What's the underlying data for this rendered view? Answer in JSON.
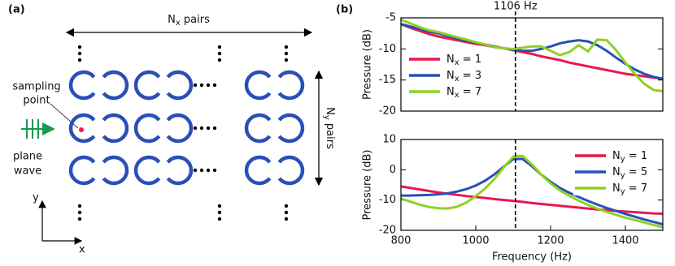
{
  "diagram": {
    "panel_label": "(a)",
    "top_label": "Nx pairs",
    "side_label": "Ny pairs",
    "sampling_label": [
      "sampling",
      "point"
    ],
    "wave_label": [
      "plane",
      "wave"
    ],
    "axis_y": "y",
    "axis_x": "x"
  },
  "chart_data": [
    {
      "type": "line",
      "panel_label": "(b)",
      "annotation": "1106 Hz",
      "vline": 1106,
      "ylabel": "Pressure (dB)",
      "xlim": [
        800,
        1500
      ],
      "ylim": [
        -20,
        -5
      ],
      "yticks": [
        -5,
        -10,
        -15,
        -20
      ],
      "legend": "left",
      "x": [
        800,
        825,
        850,
        875,
        900,
        925,
        950,
        975,
        1000,
        1025,
        1050,
        1075,
        1100,
        1125,
        1150,
        1175,
        1200,
        1225,
        1250,
        1275,
        1300,
        1325,
        1350,
        1375,
        1400,
        1425,
        1450,
        1475,
        1500
      ],
      "series": [
        {
          "name": "Nx = 1",
          "color": "#e8194f",
          "values": [
            -6.0,
            -6.6,
            -7.1,
            -7.6,
            -8.0,
            -8.3,
            -8.6,
            -8.9,
            -9.2,
            -9.4,
            -9.7,
            -9.9,
            -10.2,
            -10.5,
            -10.8,
            -11.2,
            -11.5,
            -11.8,
            -12.2,
            -12.5,
            -12.8,
            -13.1,
            -13.4,
            -13.7,
            -14.0,
            -14.2,
            -14.4,
            -14.6,
            -14.8
          ]
        },
        {
          "name": "Nx = 3",
          "color": "#2651b5",
          "values": [
            -6.0,
            -6.4,
            -6.8,
            -7.2,
            -7.5,
            -7.9,
            -8.3,
            -8.7,
            -9.0,
            -9.3,
            -9.6,
            -9.9,
            -10.1,
            -10.3,
            -10.3,
            -10.0,
            -9.6,
            -9.1,
            -8.8,
            -8.6,
            -8.8,
            -9.4,
            -10.3,
            -11.4,
            -12.4,
            -13.3,
            -14.0,
            -14.5,
            -14.8
          ]
        },
        {
          "name": "Nx = 7",
          "color": "#8fd124",
          "values": [
            -5.3,
            -5.9,
            -6.5,
            -7.0,
            -7.3,
            -7.7,
            -8.1,
            -8.5,
            -8.9,
            -9.3,
            -9.7,
            -9.9,
            -10.0,
            -9.8,
            -9.6,
            -9.6,
            -10.3,
            -11.0,
            -10.5,
            -9.4,
            -10.4,
            -8.5,
            -8.6,
            -10.2,
            -12.2,
            -14.0,
            -15.6,
            -16.6,
            -16.8
          ]
        }
      ]
    },
    {
      "type": "line",
      "vline": 1106,
      "ylabel": "Pressure (dB)",
      "xlabel": "Frequency (Hz)",
      "xlim": [
        800,
        1500
      ],
      "xticks": [
        800,
        1000,
        1200,
        1400
      ],
      "ylim": [
        -20,
        10
      ],
      "yticks": [
        10,
        0,
        -10,
        -20
      ],
      "legend": "right",
      "x": [
        800,
        825,
        850,
        875,
        900,
        925,
        950,
        975,
        1000,
        1025,
        1050,
        1075,
        1100,
        1125,
        1150,
        1175,
        1200,
        1225,
        1250,
        1275,
        1300,
        1325,
        1350,
        1375,
        1400,
        1425,
        1450,
        1475,
        1500
      ],
      "series": [
        {
          "name": "Ny = 1",
          "color": "#e8194f",
          "values": [
            -5.5,
            -6.0,
            -6.5,
            -7.0,
            -7.5,
            -7.9,
            -8.3,
            -8.7,
            -9.0,
            -9.3,
            -9.7,
            -10.0,
            -10.3,
            -10.6,
            -11.0,
            -11.3,
            -11.6,
            -11.9,
            -12.2,
            -12.5,
            -12.8,
            -13.1,
            -13.3,
            -13.6,
            -13.8,
            -14.0,
            -14.2,
            -14.4,
            -14.5
          ]
        },
        {
          "name": "Ny = 5",
          "color": "#2651b5",
          "values": [
            -8.5,
            -8.5,
            -8.4,
            -8.3,
            -8.1,
            -7.8,
            -7.2,
            -6.4,
            -5.2,
            -3.6,
            -1.5,
            1.0,
            3.5,
            3.6,
            1.2,
            -1.6,
            -4.0,
            -6.0,
            -7.6,
            -9.0,
            -10.3,
            -11.5,
            -12.6,
            -13.6,
            -14.6,
            -15.5,
            -16.4,
            -17.2,
            -18.0
          ]
        },
        {
          "name": "Ny = 7",
          "color": "#8fd124",
          "values": [
            -9.5,
            -10.5,
            -11.5,
            -12.3,
            -12.7,
            -12.8,
            -12.2,
            -10.8,
            -8.7,
            -6.2,
            -3.0,
            0.8,
            4.3,
            4.6,
            1.8,
            -1.6,
            -4.5,
            -6.8,
            -8.6,
            -10.2,
            -11.6,
            -12.8,
            -13.9,
            -14.9,
            -15.8,
            -16.6,
            -17.4,
            -18.2,
            -19.0
          ]
        }
      ]
    }
  ]
}
